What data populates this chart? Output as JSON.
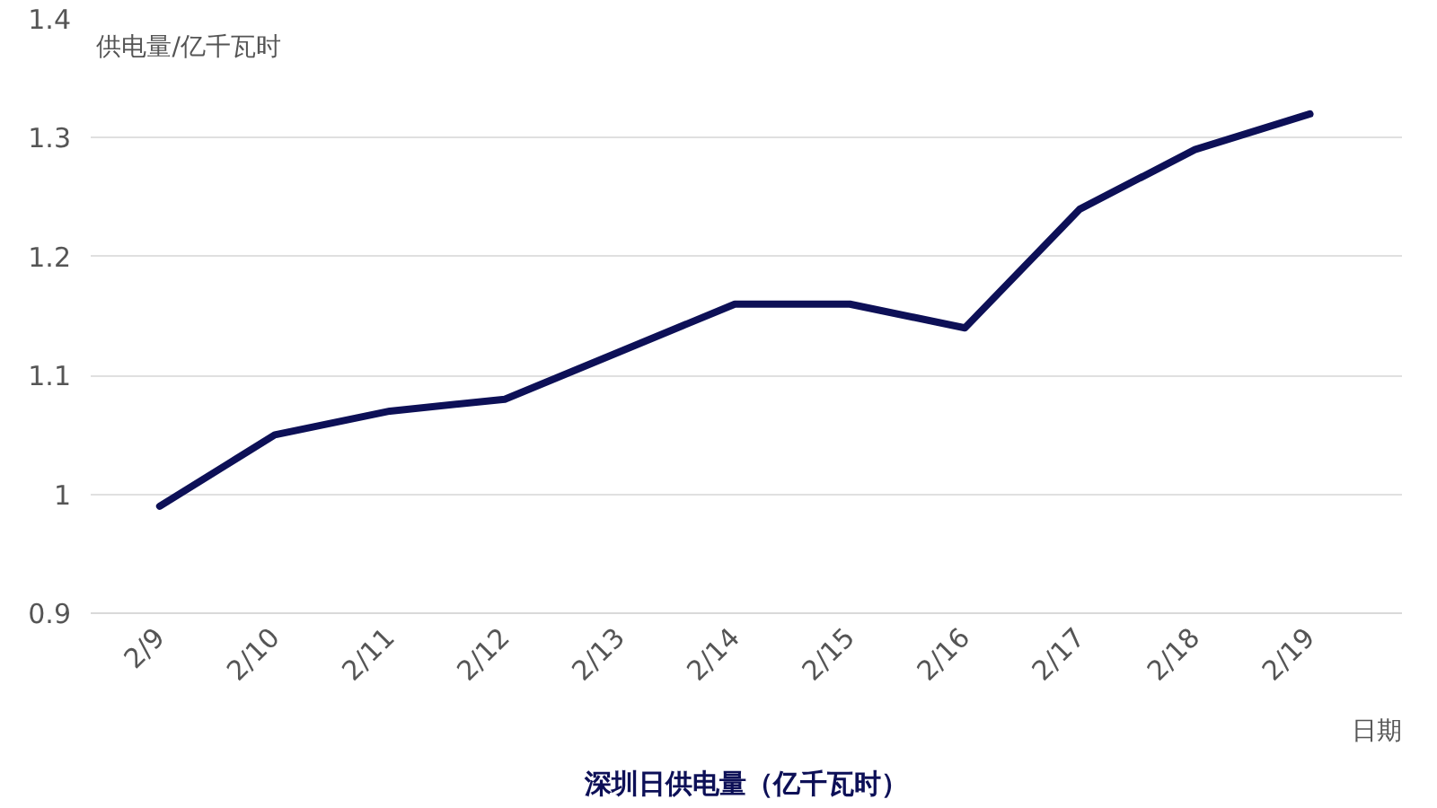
{
  "chart_data": {
    "type": "line",
    "title": "深圳日供电量（亿千瓦时）",
    "ylabel": "供电量/亿千瓦时",
    "xlabel": "日期",
    "categories": [
      "2/9",
      "2/10",
      "2/11",
      "2/12",
      "2/13",
      "2/14",
      "2/15",
      "2/16",
      "2/17",
      "2/18",
      "2/19"
    ],
    "series": [
      {
        "color": "#0d1057",
        "values": [
          0.99,
          1.05,
          1.07,
          1.08,
          1.12,
          1.16,
          1.16,
          1.14,
          1.24,
          1.29,
          1.32
        ]
      }
    ],
    "ylim": [
      0.9,
      1.4
    ],
    "yticks": [
      0.9,
      1,
      1.1,
      1.2,
      1.3,
      1.4
    ],
    "grid": "y",
    "marker": "none",
    "line_style": "solid"
  }
}
